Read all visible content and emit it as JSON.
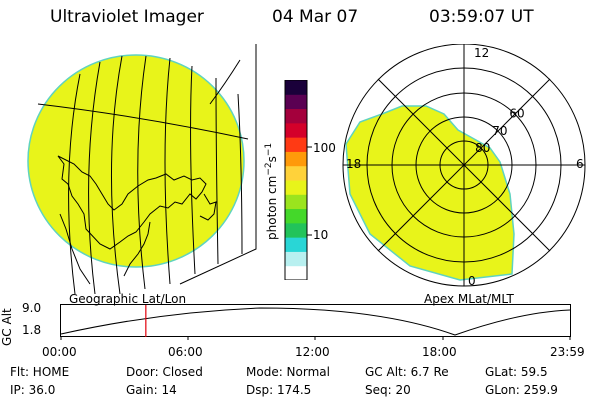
{
  "header": {
    "instrument": "Ultraviolet Imager",
    "date": "04 Mar 07",
    "time": "03:59:07 UT"
  },
  "colorbar": {
    "unit_base": "photon cm",
    "unit_exp1": "−2",
    "unit_mid": "s",
    "unit_exp2": "−1",
    "ticks": [
      {
        "label": "100",
        "value": 100
      },
      {
        "label": "10",
        "value": 10
      }
    ],
    "scale": "log",
    "colors": [
      "#ffffff",
      "#b8f0f0",
      "#29d6d6",
      "#22c35a",
      "#44d82a",
      "#9be41e",
      "#e8f41a",
      "#ffd23a",
      "#ff9a0a",
      "#ff3a14",
      "#d4002a",
      "#a4003c",
      "#5a0052",
      "#1a003a"
    ]
  },
  "map_labels": {
    "left": "Geographic Lat/Lon",
    "right": "Apex MLat/MLT"
  },
  "polar": {
    "mlt_labels": [
      {
        "label": "12",
        "mlt": 12
      },
      {
        "label": "18",
        "mlt": 18
      },
      {
        "label": "6",
        "mlt": 6
      },
      {
        "label": "0",
        "mlt": 0
      }
    ],
    "lat_labels": [
      {
        "label": "60",
        "lat": 60
      },
      {
        "label": "70",
        "lat": 70
      },
      {
        "label": "80",
        "lat": 80
      }
    ]
  },
  "altitude_plot": {
    "ylabel": "GC Alt",
    "yticks": [
      "9.0",
      "1.8"
    ],
    "ylim": [
      1.8,
      9.0
    ],
    "xticks": [
      "00:00",
      "06:00",
      "12:00",
      "18:00",
      "23:59"
    ],
    "current_time_hours": 4.0
  },
  "status": {
    "flt": "Flt: HOME",
    "door": "Door: Closed",
    "mode": "Mode: Normal",
    "gc_alt": "GC Alt: 6.7 Re",
    "glat": "GLat:  59.5",
    "ip": "IP: 36.0",
    "gain": "Gain: 14",
    "dsp": "Dsp:  174.5",
    "seq": "Seq: 20",
    "glon": "GLon: 259.9"
  },
  "colors": {
    "emission": "#e8f41a",
    "limb": "#5fd3c0",
    "time_marker": "#e0000a"
  }
}
